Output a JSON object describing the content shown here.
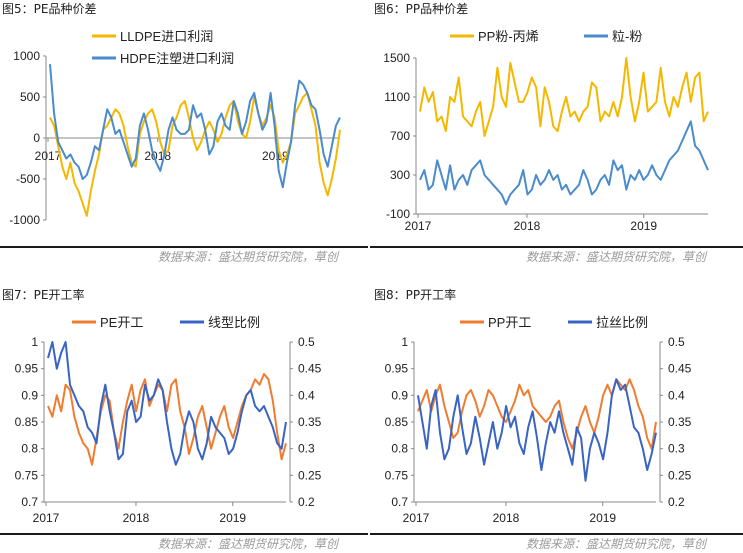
{
  "page": {
    "source_text": "数据来源：盛达期货研究院，草创"
  },
  "chart_data": [
    {
      "id": "c1",
      "panel_title": "图5：PE品种价差",
      "type": "line",
      "x_ticks": [
        "2017",
        "2018",
        "2019"
      ],
      "y_ticks": [
        "1000",
        "500",
        "0",
        "-500",
        "-1000"
      ],
      "ylim": [
        -1000,
        1000
      ],
      "legend_position": "top",
      "series": [
        {
          "name": "LLDPE进口利润",
          "color": "#f5b800",
          "values": [
            250,
            150,
            -100,
            -350,
            -500,
            -300,
            -550,
            -650,
            -800,
            -950,
            -650,
            -400,
            -200,
            100,
            150,
            250,
            350,
            300,
            150,
            -100,
            -300,
            -350,
            50,
            200,
            300,
            350,
            200,
            -50,
            -200,
            -150,
            150,
            250,
            400,
            450,
            250,
            0,
            -150,
            -50,
            100,
            200,
            100,
            -50,
            50,
            250,
            400,
            450,
            200,
            50,
            0,
            200,
            500,
            300,
            150,
            250,
            400,
            250,
            -150,
            -300,
            -200,
            -50,
            300,
            400,
            500,
            550,
            350,
            150,
            -300,
            -550,
            -700,
            -500,
            -250,
            100
          ]
        },
        {
          "name": "HDPE注塑进口利润",
          "color": "#4a8ccb",
          "values": [
            900,
            300,
            -50,
            -150,
            -250,
            -200,
            -300,
            -350,
            -500,
            -450,
            -300,
            -100,
            -150,
            100,
            350,
            250,
            50,
            100,
            -50,
            -200,
            -350,
            -250,
            150,
            300,
            100,
            -150,
            -300,
            -400,
            -200,
            100,
            250,
            100,
            50,
            50,
            100,
            400,
            250,
            300,
            100,
            -200,
            -100,
            200,
            300,
            150,
            100,
            450,
            300,
            50,
            200,
            450,
            550,
            300,
            100,
            200,
            550,
            150,
            -400,
            -600,
            -300,
            -50,
            400,
            700,
            650,
            550,
            400,
            350,
            100,
            -200,
            -350,
            -100,
            150,
            250
          ]
        }
      ]
    },
    {
      "id": "c2",
      "panel_title": "图6：PP品种价差",
      "type": "line",
      "x_ticks": [
        "2017",
        "2018",
        "2019"
      ],
      "y_ticks": [
        "1500",
        "1100",
        "700",
        "300",
        "-100"
      ],
      "ylim": [
        -100,
        1500
      ],
      "legend_position": "top",
      "series": [
        {
          "name": "PP粉-丙烯",
          "color": "#f5b800",
          "values": [
            950,
            1200,
            1050,
            1150,
            850,
            900,
            750,
            1100,
            1050,
            1300,
            900,
            850,
            800,
            950,
            1050,
            700,
            850,
            1000,
            1400,
            1100,
            1000,
            1450,
            1250,
            1050,
            1050,
            1150,
            1300,
            1200,
            800,
            1200,
            1050,
            800,
            750,
            950,
            1100,
            900,
            950,
            850,
            950,
            1000,
            1250,
            1200,
            850,
            950,
            900,
            1050,
            900,
            1100,
            1500,
            1100,
            850,
            1050,
            1350,
            950,
            1000,
            1050,
            1400,
            1050,
            900,
            1100,
            1000,
            1200,
            1350,
            1050,
            1300,
            1350,
            850,
            950
          ]
        },
        {
          "name": "粒-粉",
          "color": "#4a8ccb",
          "values": [
            250,
            350,
            150,
            200,
            450,
            300,
            150,
            400,
            150,
            250,
            300,
            200,
            350,
            400,
            450,
            300,
            250,
            200,
            150,
            100,
            0,
            100,
            150,
            200,
            350,
            100,
            150,
            300,
            200,
            250,
            350,
            250,
            300,
            150,
            200,
            100,
            150,
            200,
            350,
            250,
            100,
            150,
            250,
            300,
            200,
            450,
            350,
            400,
            150,
            300,
            250,
            350,
            250,
            300,
            400,
            300,
            250,
            350,
            450,
            500,
            550,
            650,
            750,
            850,
            600,
            550,
            450,
            350
          ]
        }
      ]
    },
    {
      "id": "c3",
      "panel_title": "图7：PE开工率",
      "type": "line",
      "x_ticks": [
        "2017",
        "2018",
        "2019"
      ],
      "y_ticks_left": [
        "1",
        "0.95",
        "0.9",
        "0.85",
        "0.8",
        "0.75",
        "0.7"
      ],
      "y_ticks_right": [
        "0.5",
        "0.45",
        "0.4",
        "0.35",
        "0.3",
        "0.25",
        "0.2"
      ],
      "ylim_left": [
        0.7,
        1.0
      ],
      "ylim_right": [
        0.2,
        0.5
      ],
      "legend_position": "top",
      "series": [
        {
          "name": "PE开工",
          "color": "#ee7d31",
          "axis": "left",
          "values": [
            0.88,
            0.86,
            0.9,
            0.87,
            0.92,
            0.91,
            0.86,
            0.83,
            0.81,
            0.8,
            0.77,
            0.82,
            0.87,
            0.9,
            0.89,
            0.83,
            0.8,
            0.85,
            0.89,
            0.92,
            0.87,
            0.91,
            0.93,
            0.88,
            0.9,
            0.92,
            0.91,
            0.87,
            0.92,
            0.93,
            0.87,
            0.84,
            0.79,
            0.82,
            0.86,
            0.88,
            0.84,
            0.8,
            0.83,
            0.86,
            0.88,
            0.84,
            0.82,
            0.85,
            0.88,
            0.9,
            0.91,
            0.93,
            0.92,
            0.94,
            0.93,
            0.89,
            0.83,
            0.78,
            0.81
          ]
        },
        {
          "name": "线型比例",
          "color": "#3a64c4",
          "axis": "right",
          "values": [
            0.47,
            0.5,
            0.45,
            0.48,
            0.5,
            0.42,
            0.4,
            0.38,
            0.37,
            0.34,
            0.33,
            0.31,
            0.38,
            0.42,
            0.37,
            0.33,
            0.28,
            0.29,
            0.37,
            0.39,
            0.35,
            0.36,
            0.42,
            0.39,
            0.4,
            0.43,
            0.41,
            0.35,
            0.3,
            0.27,
            0.29,
            0.34,
            0.37,
            0.35,
            0.3,
            0.28,
            0.31,
            0.36,
            0.34,
            0.33,
            0.32,
            0.29,
            0.3,
            0.33,
            0.37,
            0.4,
            0.41,
            0.38,
            0.37,
            0.38,
            0.36,
            0.34,
            0.31,
            0.3,
            0.35
          ]
        }
      ]
    },
    {
      "id": "c4",
      "panel_title": "图8：PP开工率",
      "type": "line",
      "x_ticks": [
        "2017",
        "2018",
        "2019"
      ],
      "y_ticks_left": [
        "1",
        "0.95",
        "0.9",
        "0.85",
        "0.8",
        "0.75",
        "0.7"
      ],
      "y_ticks_right": [
        "0.5",
        "0.45",
        "0.4",
        "0.35",
        "0.3",
        "0.25",
        "0.2"
      ],
      "ylim_left": [
        0.7,
        1.0
      ],
      "ylim_right": [
        0.2,
        0.5
      ],
      "legend_position": "top",
      "series": [
        {
          "name": "PP开工",
          "color": "#ee7d31",
          "axis": "left",
          "values": [
            0.87,
            0.89,
            0.91,
            0.87,
            0.9,
            0.92,
            0.88,
            0.85,
            0.82,
            0.83,
            0.87,
            0.9,
            0.91,
            0.89,
            0.86,
            0.88,
            0.91,
            0.9,
            0.88,
            0.86,
            0.85,
            0.87,
            0.89,
            0.92,
            0.9,
            0.91,
            0.88,
            0.87,
            0.86,
            0.85,
            0.86,
            0.88,
            0.89,
            0.85,
            0.82,
            0.8,
            0.83,
            0.86,
            0.88,
            0.85,
            0.83,
            0.86,
            0.9,
            0.92,
            0.9,
            0.93,
            0.92,
            0.91,
            0.93,
            0.91,
            0.88,
            0.86,
            0.82,
            0.8,
            0.85
          ]
        },
        {
          "name": "拉丝比例",
          "color": "#3a64c4",
          "axis": "right",
          "values": [
            0.4,
            0.35,
            0.3,
            0.38,
            0.41,
            0.33,
            0.28,
            0.3,
            0.36,
            0.4,
            0.34,
            0.29,
            0.31,
            0.36,
            0.32,
            0.27,
            0.31,
            0.35,
            0.3,
            0.33,
            0.38,
            0.34,
            0.36,
            0.31,
            0.29,
            0.34,
            0.37,
            0.32,
            0.26,
            0.31,
            0.35,
            0.33,
            0.37,
            0.33,
            0.3,
            0.27,
            0.34,
            0.32,
            0.24,
            0.3,
            0.33,
            0.31,
            0.28,
            0.33,
            0.4,
            0.43,
            0.41,
            0.42,
            0.38,
            0.34,
            0.33,
            0.3,
            0.26,
            0.29,
            0.33
          ]
        }
      ]
    }
  ]
}
